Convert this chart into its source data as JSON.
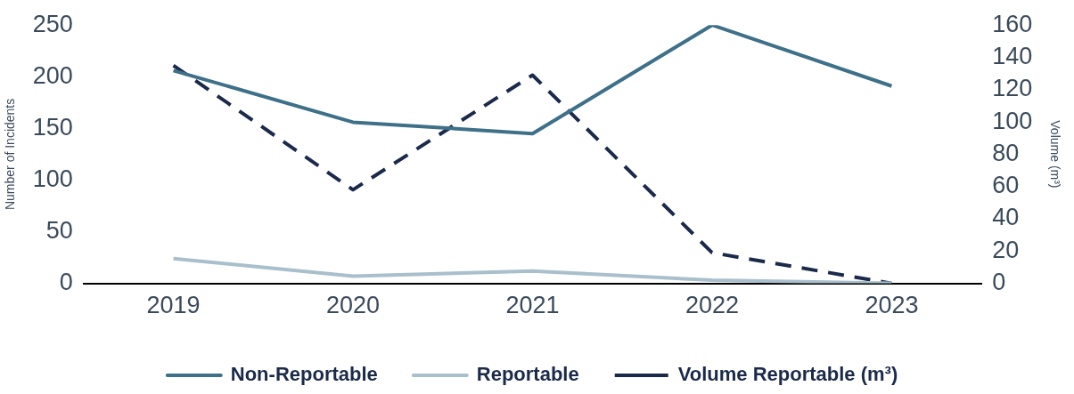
{
  "chart_data": {
    "type": "line",
    "ylabel": "Number of Incidents",
    "y2label": "Volume (m³)",
    "categories": [
      "2019",
      "2020",
      "2021",
      "2022",
      "2023"
    ],
    "series": [
      {
        "name": "Non-Reportable",
        "color": "#3f7089",
        "values": [
          206,
          156,
          145,
          250,
          191
        ]
      },
      {
        "name": "Reportable",
        "color": "#a9bfcc",
        "values": [
          24,
          7,
          12,
          3,
          0
        ]
      },
      {
        "name": "Volume Reportable (m³)",
        "color": "#1b2a4a",
        "values": [
          135,
          58,
          129,
          19,
          0
        ],
        "axis": "y2",
        "line_style": "dashed"
      }
    ],
    "ylim": [
      0,
      250
    ],
    "yticks": [
      0,
      50,
      100,
      150,
      200,
      250
    ],
    "y2lim": [
      0,
      160
    ],
    "y2ticks": [
      0,
      20,
      40,
      60,
      80,
      100,
      120,
      140,
      160
    ],
    "legend": "bottom",
    "marker": "none",
    "line_style": "solid"
  }
}
